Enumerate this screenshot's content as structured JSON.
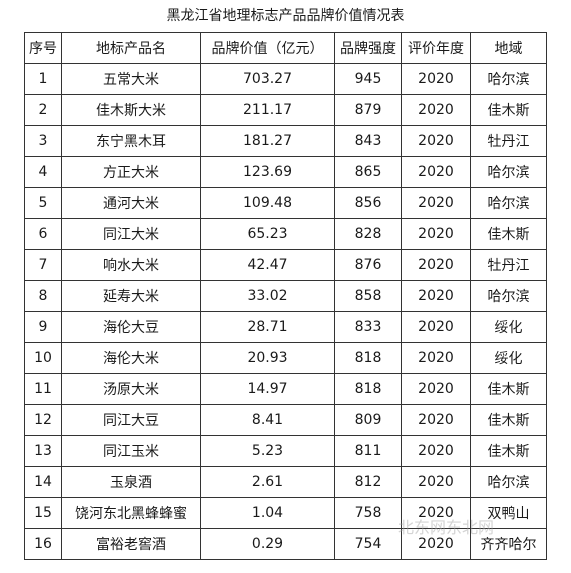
{
  "title": "黑龙江省地理标志产品品牌价值情况表",
  "headers": [
    "序号",
    "地标产品名",
    "品牌价值（亿元）",
    "品牌强度",
    "评价年度",
    "地域"
  ],
  "rows": [
    [
      "1",
      "五常大米",
      "703.27",
      "945",
      "2020",
      "哈尔滨"
    ],
    [
      "2",
      "佳木斯大米",
      "211.17",
      "879",
      "2020",
      "佳木斯"
    ],
    [
      "3",
      "东宁黑木耳",
      "181.27",
      "843",
      "2020",
      "牡丹江"
    ],
    [
      "4",
      "方正大米",
      "123.69",
      "865",
      "2020",
      "哈尔滨"
    ],
    [
      "5",
      "通河大米",
      "109.48",
      "856",
      "2020",
      "哈尔滨"
    ],
    [
      "6",
      "同江大米",
      "65.23",
      "828",
      "2020",
      "佳木斯"
    ],
    [
      "7",
      "响水大米",
      "42.47",
      "876",
      "2020",
      "牡丹江"
    ],
    [
      "8",
      "延寿大米",
      "33.02",
      "858",
      "2020",
      "哈尔滨"
    ],
    [
      "9",
      "海伦大豆",
      "28.71",
      "833",
      "2020",
      "绥化"
    ],
    [
      "10",
      "海伦大米",
      "20.93",
      "818",
      "2020",
      "绥化"
    ],
    [
      "11",
      "汤原大米",
      "14.97",
      "818",
      "2020",
      "佳木斯"
    ],
    [
      "12",
      "同江大豆",
      "8.41",
      "809",
      "2020",
      "佳木斯"
    ],
    [
      "13",
      "同江玉米",
      "5.23",
      "811",
      "2020",
      "佳木斯"
    ],
    [
      "14",
      "玉泉酒",
      "2.61",
      "812",
      "2020",
      "哈尔滨"
    ],
    [
      "15",
      "饶河东北黑蜂蜂蜜",
      "1.04",
      "758",
      "2020",
      "双鸭山"
    ],
    [
      "16",
      "富裕老窖酒",
      "0.29",
      "754",
      "2020",
      "齐齐哈尔"
    ]
  ],
  "watermark": "北东网东北网"
}
